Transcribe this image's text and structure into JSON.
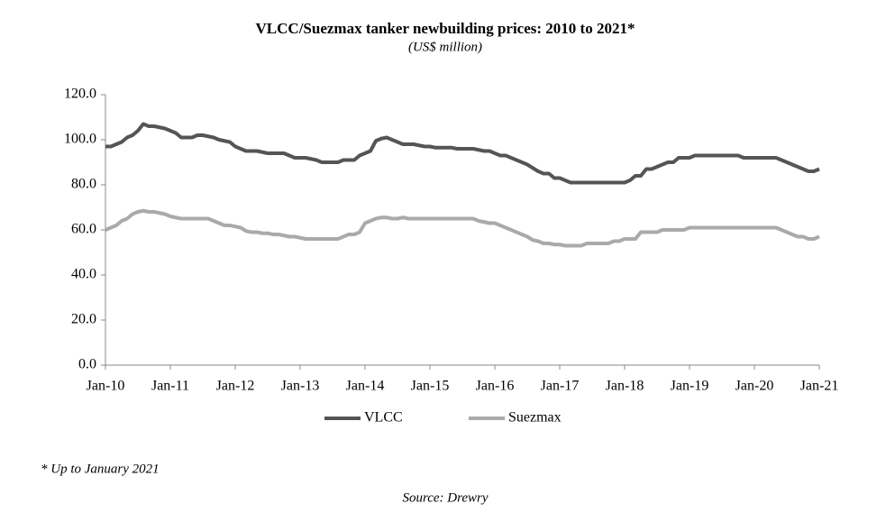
{
  "chart_data": {
    "type": "line",
    "title": "VLCC/Suezmax tanker newbuilding prices: 2010 to 2021*",
    "subtitle": "(US$ million)",
    "footnote": "* Up to January 2021",
    "source": "Source: Drewry",
    "categories": [
      "Jan-10",
      null,
      null,
      null,
      null,
      null,
      null,
      null,
      null,
      null,
      null,
      null,
      "Jan-11",
      null,
      null,
      null,
      null,
      null,
      null,
      null,
      null,
      null,
      null,
      null,
      "Jan-12",
      null,
      null,
      null,
      null,
      null,
      null,
      null,
      null,
      null,
      null,
      null,
      "Jan-13",
      null,
      null,
      null,
      null,
      null,
      null,
      null,
      null,
      null,
      null,
      null,
      "Jan-14",
      null,
      null,
      null,
      null,
      null,
      null,
      null,
      null,
      null,
      null,
      null,
      "Jan-15",
      null,
      null,
      null,
      null,
      null,
      null,
      null,
      null,
      null,
      null,
      null,
      "Jan-16",
      null,
      null,
      null,
      null,
      null,
      null,
      null,
      null,
      null,
      null,
      null,
      "Jan-17",
      null,
      null,
      null,
      null,
      null,
      null,
      null,
      null,
      null,
      null,
      null,
      "Jan-18",
      null,
      null,
      null,
      null,
      null,
      null,
      null,
      null,
      null,
      null,
      null,
      "Jan-19",
      null,
      null,
      null,
      null,
      null,
      null,
      null,
      null,
      null,
      null,
      null,
      "Jan-20",
      null,
      null,
      null,
      null,
      null,
      null,
      null,
      null,
      null,
      null,
      null,
      "Jan-21"
    ],
    "series": [
      {
        "name": "VLCC",
        "color": "#555555",
        "values": [
          97,
          97,
          98,
          99,
          101,
          102,
          104,
          107,
          106,
          106,
          105.5,
          105,
          104,
          103,
          101,
          101,
          101,
          102,
          102,
          101.5,
          101,
          100,
          99.5,
          99,
          97,
          96,
          95,
          95,
          95,
          94.5,
          94,
          94,
          94,
          94,
          93,
          92,
          92,
          92,
          91.5,
          91,
          90,
          90,
          90,
          90,
          91,
          91,
          91,
          93,
          94,
          95,
          99.5,
          100.5,
          101,
          100,
          99,
          98,
          98,
          98,
          97.5,
          97,
          97,
          96.5,
          96.5,
          96.5,
          96.5,
          96,
          96,
          96,
          96,
          95.5,
          95,
          95,
          94,
          93,
          93,
          92,
          91,
          90,
          89,
          87.5,
          86,
          85,
          85,
          83,
          83,
          82,
          81,
          81,
          81,
          81,
          81,
          81,
          81,
          81,
          81,
          81,
          81,
          82,
          84,
          84,
          87,
          87,
          88,
          89,
          90,
          90,
          92,
          92,
          92,
          93,
          93,
          93,
          93,
          93,
          93,
          93,
          93,
          93,
          92,
          92,
          92,
          92,
          92,
          92,
          92,
          91,
          90,
          89,
          88,
          87,
          86,
          86,
          87
        ]
      },
      {
        "name": "Suezmax",
        "color": "#aaaaaa",
        "values": [
          60,
          61,
          62,
          64,
          65,
          67,
          68,
          68.5,
          68,
          68,
          67.5,
          67,
          66,
          65.5,
          65,
          65,
          65,
          65,
          65,
          65,
          64,
          63,
          62,
          62,
          61.5,
          61,
          59.5,
          59,
          59,
          58.5,
          58.5,
          58,
          58,
          57.5,
          57,
          57,
          56.5,
          56,
          56,
          56,
          56,
          56,
          56,
          56,
          57,
          58,
          58,
          59,
          63,
          64,
          65,
          65.5,
          65.5,
          65,
          65,
          65.5,
          65,
          65,
          65,
          65,
          65,
          65,
          65,
          65,
          65,
          65,
          65,
          65,
          65,
          64,
          63.5,
          63,
          63,
          62,
          61,
          60,
          59,
          58,
          57,
          55.5,
          55,
          54,
          54,
          53.5,
          53.5,
          53,
          53,
          53,
          53,
          54,
          54,
          54,
          54,
          54,
          55,
          55,
          56,
          56,
          56,
          59,
          59,
          59,
          59,
          60,
          60,
          60,
          60,
          60,
          61,
          61,
          61,
          61,
          61,
          61,
          61,
          61,
          61,
          61,
          61,
          61,
          61,
          61,
          61,
          61,
          61,
          60,
          59,
          58,
          57,
          57,
          56,
          56,
          57
        ]
      }
    ],
    "ylim": [
      0,
      120
    ],
    "yticks": [
      {
        "value": 0,
        "label": "0.0"
      },
      {
        "value": 20,
        "label": "20.0"
      },
      {
        "value": 40,
        "label": "40.0"
      },
      {
        "value": 60,
        "label": "60.0"
      },
      {
        "value": 80,
        "label": "80.0"
      },
      {
        "value": 100,
        "label": "100.0"
      },
      {
        "value": 120,
        "label": "120.0"
      }
    ],
    "grid": false,
    "legend": "bottom"
  }
}
